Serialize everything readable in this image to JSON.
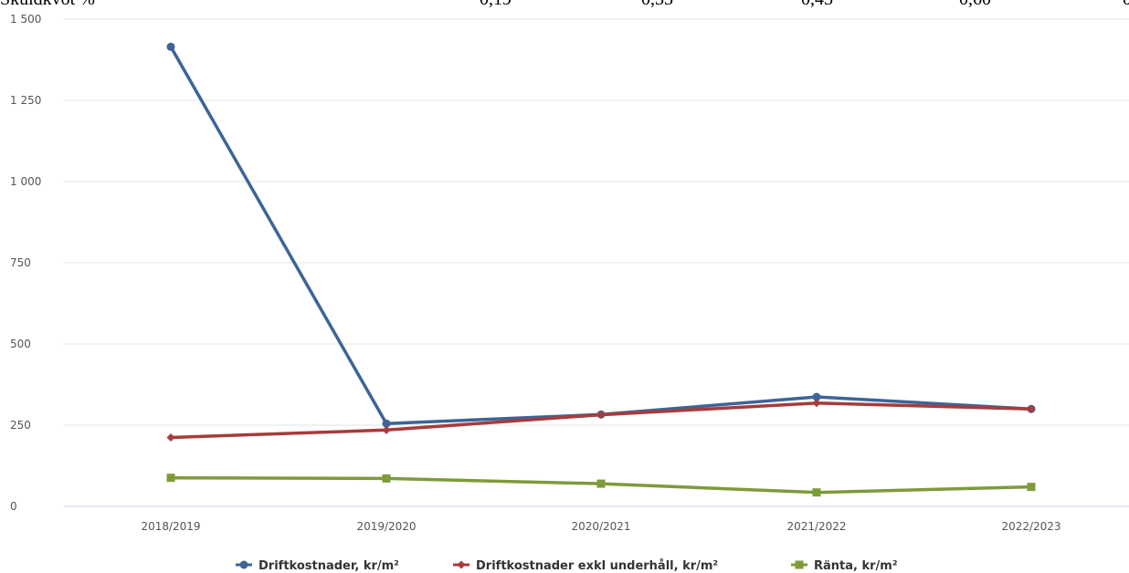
{
  "top_row": {
    "label": "Skuldkvot %",
    "values": [
      "0,19",
      "0,33",
      "0,43",
      "0,60",
      "0"
    ]
  },
  "chart_data": {
    "type": "line",
    "title": "",
    "xlabel": "",
    "ylabel": "",
    "categories": [
      "2018/2019",
      "2019/2020",
      "2020/2021",
      "2021/2022",
      "2022/2023"
    ],
    "ylim": [
      0,
      1500
    ],
    "yticks": [
      0,
      250,
      500,
      750,
      1000,
      1250,
      1500
    ],
    "ytick_labels": [
      "0",
      "250",
      "500",
      "750",
      "1 000",
      "1 250",
      "1 500"
    ],
    "grid": true,
    "legend_position": "bottom",
    "series": [
      {
        "name": "Driftkostnader, kr/m²",
        "color": "#3d6497",
        "marker": "circle",
        "values": [
          1415,
          255,
          283,
          337,
          300
        ]
      },
      {
        "name": "Driftkostnader exkl underhåll, kr/m²",
        "color": "#a83b3b",
        "marker": "diamond",
        "values": [
          212,
          235,
          282,
          318,
          300
        ]
      },
      {
        "name": "Ränta, kr/m²",
        "color": "#7d9b3a",
        "marker": "square",
        "values": [
          88,
          86,
          70,
          43,
          60
        ]
      }
    ]
  }
}
